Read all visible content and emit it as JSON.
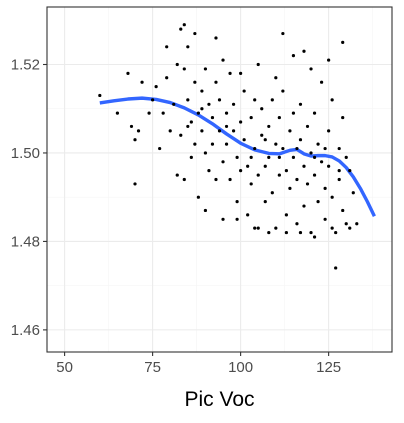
{
  "chart_data": {
    "type": "scatter",
    "title": "",
    "xlabel": "Pic Voc",
    "ylabel": "",
    "xlim": [
      45,
      143
    ],
    "ylim": [
      1.455,
      1.533
    ],
    "x_ticks": [
      50,
      75,
      100,
      125
    ],
    "y_ticks": [
      1.46,
      1.48,
      1.5,
      1.52
    ],
    "x_tick_labels": [
      "50",
      "75",
      "100",
      "125"
    ],
    "y_tick_labels": [
      "1.46",
      "1.48",
      "1.50",
      "1.52"
    ],
    "grid": true,
    "legend": "none",
    "colors": {
      "points": "#000000",
      "smooth": "#3366ff",
      "grid_major": "#ebebeb",
      "grid_minor": "#f5f5f5",
      "panel_border": "#333333",
      "tick_label": "#4d4d4d"
    },
    "series": [
      {
        "type": "scatter",
        "points": [
          [
            60,
            1.513
          ],
          [
            65,
            1.509
          ],
          [
            68,
            1.518
          ],
          [
            69,
            1.506
          ],
          [
            70,
            1.493
          ],
          [
            70,
            1.503
          ],
          [
            71,
            1.505
          ],
          [
            72,
            1.516
          ],
          [
            74,
            1.509
          ],
          [
            75,
            1.512
          ],
          [
            76,
            1.515
          ],
          [
            77,
            1.501
          ],
          [
            78,
            1.509
          ],
          [
            79,
            1.517
          ],
          [
            80,
            1.505
          ],
          [
            81,
            1.511
          ],
          [
            82,
            1.495
          ],
          [
            83,
            1.528
          ],
          [
            83,
            1.504
          ],
          [
            84,
            1.519
          ],
          [
            84,
            1.494
          ],
          [
            85,
            1.512
          ],
          [
            85,
            1.524
          ],
          [
            86,
            1.507
          ],
          [
            86,
            1.499
          ],
          [
            87,
            1.516
          ],
          [
            87,
            1.502
          ],
          [
            88,
            1.509
          ],
          [
            88,
            1.49
          ],
          [
            89,
            1.514
          ],
          [
            89,
            1.505
          ],
          [
            90,
            1.5
          ],
          [
            90,
            1.487
          ],
          [
            91,
            1.511
          ],
          [
            91,
            1.496
          ],
          [
            92,
            1.508
          ],
          [
            92,
            1.502
          ],
          [
            93,
            1.516
          ],
          [
            93,
            1.494
          ],
          [
            94,
            1.505
          ],
          [
            94,
            1.512
          ],
          [
            95,
            1.498
          ],
          [
            95,
            1.485
          ],
          [
            96,
            1.509
          ],
          [
            96,
            1.502
          ],
          [
            97,
            1.518
          ],
          [
            97,
            1.494
          ],
          [
            98,
            1.505
          ],
          [
            98,
            1.511
          ],
          [
            99,
            1.499
          ],
          [
            99,
            1.489
          ],
          [
            100,
            1.507
          ],
          [
            100,
            1.496
          ],
          [
            101,
            1.503
          ],
          [
            101,
            1.514
          ],
          [
            102,
            1.497
          ],
          [
            102,
            1.486
          ],
          [
            103,
            1.508
          ],
          [
            103,
            1.493
          ],
          [
            104,
            1.501
          ],
          [
            104,
            1.512
          ],
          [
            105,
            1.495
          ],
          [
            105,
            1.483
          ],
          [
            106,
            1.504
          ],
          [
            106,
            1.51
          ],
          [
            107,
            1.497
          ],
          [
            107,
            1.489
          ],
          [
            108,
            1.506
          ],
          [
            108,
            1.499
          ],
          [
            109,
            1.512
          ],
          [
            109,
            1.491
          ],
          [
            110,
            1.502
          ],
          [
            110,
            1.483
          ],
          [
            111,
            1.508
          ],
          [
            111,
            1.495
          ],
          [
            112,
            1.501
          ],
          [
            112,
            1.514
          ],
          [
            113,
            1.496
          ],
          [
            113,
            1.486
          ],
          [
            114,
            1.505
          ],
          [
            114,
            1.492
          ],
          [
            115,
            1.509
          ],
          [
            115,
            1.499
          ],
          [
            116,
            1.494
          ],
          [
            116,
            1.484
          ],
          [
            117,
            1.503
          ],
          [
            117,
            1.511
          ],
          [
            118,
            1.497
          ],
          [
            118,
            1.488
          ],
          [
            119,
            1.506
          ],
          [
            119,
            1.493
          ],
          [
            120,
            1.5
          ],
          [
            120,
            1.482
          ],
          [
            121,
            1.509
          ],
          [
            121,
            1.495
          ],
          [
            122,
            1.502
          ],
          [
            122,
            1.489
          ],
          [
            123,
            1.498
          ],
          [
            123,
            1.516
          ],
          [
            124,
            1.492
          ],
          [
            124,
            1.485
          ],
          [
            125,
            1.505
          ],
          [
            125,
            1.497
          ],
          [
            126,
            1.49
          ],
          [
            126,
            1.512
          ],
          [
            127,
            1.482
          ],
          [
            127,
            1.474
          ],
          [
            128,
            1.501
          ],
          [
            128,
            1.494
          ],
          [
            129,
            1.508
          ],
          [
            129,
            1.487
          ],
          [
            130,
            1.499
          ],
          [
            130,
            1.484
          ],
          [
            131,
            1.496
          ],
          [
            132,
            1.491
          ],
          [
            133,
            1.484
          ],
          [
            82,
            1.52
          ],
          [
            90,
            1.519
          ],
          [
            95,
            1.521
          ],
          [
            100,
            1.518
          ],
          [
            105,
            1.52
          ],
          [
            110,
            1.517
          ],
          [
            115,
            1.522
          ],
          [
            120,
            1.519
          ],
          [
            125,
            1.521
          ],
          [
            79,
            1.524
          ],
          [
            87,
            1.527
          ],
          [
            93,
            1.526
          ],
          [
            118,
            1.523
          ],
          [
            129,
            1.525
          ],
          [
            84,
            1.529
          ],
          [
            112,
            1.527
          ],
          [
            99,
            1.485
          ],
          [
            104,
            1.483
          ],
          [
            108,
            1.482
          ],
          [
            113,
            1.482
          ],
          [
            117,
            1.482
          ],
          [
            121,
            1.481
          ],
          [
            126,
            1.483
          ],
          [
            131,
            1.483
          ],
          [
            85,
            1.506
          ],
          [
            89,
            1.51
          ],
          [
            96,
            1.506
          ],
          [
            103,
            1.499
          ],
          [
            107,
            1.503
          ],
          [
            111,
            1.499
          ],
          [
            116,
            1.501
          ],
          [
            121,
            1.499
          ],
          [
            124,
            1.501
          ],
          [
            128,
            1.496
          ]
        ]
      },
      {
        "type": "line",
        "name": "",
        "points": [
          [
            60,
            1.5113
          ],
          [
            64,
            1.5118
          ],
          [
            68,
            1.5122
          ],
          [
            72,
            1.5124
          ],
          [
            76,
            1.5121
          ],
          [
            80,
            1.5114
          ],
          [
            84,
            1.5102
          ],
          [
            88,
            1.5086
          ],
          [
            92,
            1.5066
          ],
          [
            96,
            1.5043
          ],
          [
            100,
            1.5022
          ],
          [
            104,
            1.5007
          ],
          [
            108,
            1.4999
          ],
          [
            111,
            1.4998
          ],
          [
            114,
            1.5006
          ],
          [
            116,
            1.5008
          ],
          [
            118,
            1.4998
          ],
          [
            120,
            1.4993
          ],
          [
            122,
            1.4994
          ],
          [
            124,
            1.4994
          ],
          [
            126,
            1.4991
          ],
          [
            128,
            1.4982
          ],
          [
            130,
            1.4967
          ],
          [
            132,
            1.4946
          ],
          [
            134,
            1.492
          ],
          [
            136,
            1.489
          ],
          [
            138,
            1.4857
          ]
        ]
      }
    ]
  }
}
